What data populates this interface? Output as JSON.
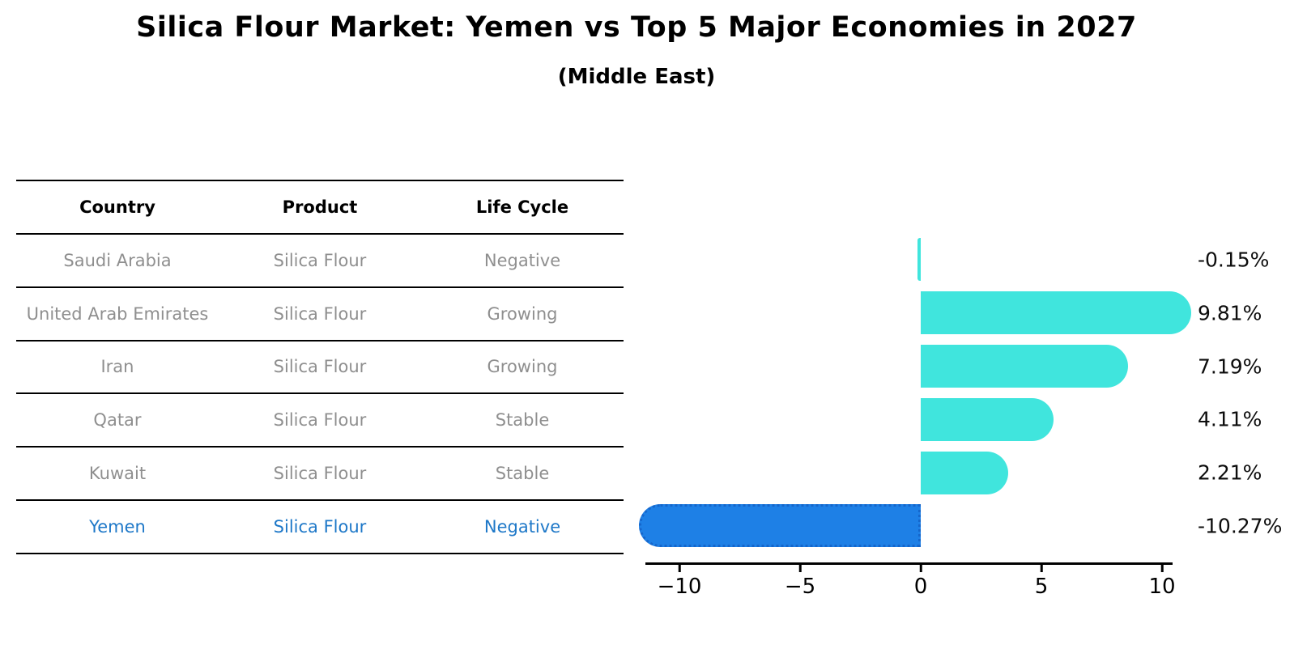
{
  "title": "Silica Flour Market: Yemen vs Top 5 Major Economies in 2027",
  "subtitle": "(Middle East)",
  "table": {
    "headers": [
      "Country",
      "Product",
      "Life Cycle"
    ],
    "rows": [
      {
        "country": "Saudi Arabia",
        "product": "Silica Flour",
        "life_cycle": "Negative",
        "highlighted": false
      },
      {
        "country": "United Arab Emirates",
        "product": "Silica Flour",
        "life_cycle": "Growing",
        "highlighted": false
      },
      {
        "country": "Iran",
        "product": "Silica Flour",
        "life_cycle": "Growing",
        "highlighted": false
      },
      {
        "country": "Qatar",
        "product": "Silica Flour",
        "life_cycle": "Stable",
        "highlighted": false
      },
      {
        "country": "Kuwait",
        "product": "Silica Flour",
        "life_cycle": "Stable",
        "highlighted": false
      },
      {
        "country": "Yemen",
        "product": "Silica Flour",
        "life_cycle": "Negative",
        "highlighted": true
      }
    ]
  },
  "chart_data": {
    "type": "bar",
    "orientation": "horizontal",
    "title": "Silica Flour Market: Yemen vs Top 5 Major Economies in 2027",
    "subtitle": "(Middle East)",
    "categories": [
      "Saudi Arabia",
      "United Arab Emirates",
      "Iran",
      "Qatar",
      "Kuwait",
      "Yemen"
    ],
    "values": [
      -0.15,
      9.81,
      7.19,
      4.11,
      2.21,
      -10.27
    ],
    "value_labels": [
      "-0.15%",
      "9.81%",
      "7.19%",
      "4.11%",
      "2.21%",
      "-10.27%"
    ],
    "unit": "%",
    "xlim": [
      -11.5,
      10.5
    ],
    "x_ticks": [
      -10,
      -5,
      0,
      5,
      10
    ],
    "x_tick_labels": [
      "−10",
      "−5",
      "0",
      "5",
      "10"
    ],
    "grid": false,
    "legend": null,
    "highlight_category": "Yemen",
    "colors": {
      "bar_default": "#40E5DD",
      "bar_highlight": "#1E80E6",
      "bar_highlight_border": "#1566CB",
      "highlight_text": "#1E78C8",
      "label_text": "#0D0D0D",
      "table_text": "#8F8F8F",
      "table_header_text": "#000000",
      "line": "#000000"
    }
  }
}
